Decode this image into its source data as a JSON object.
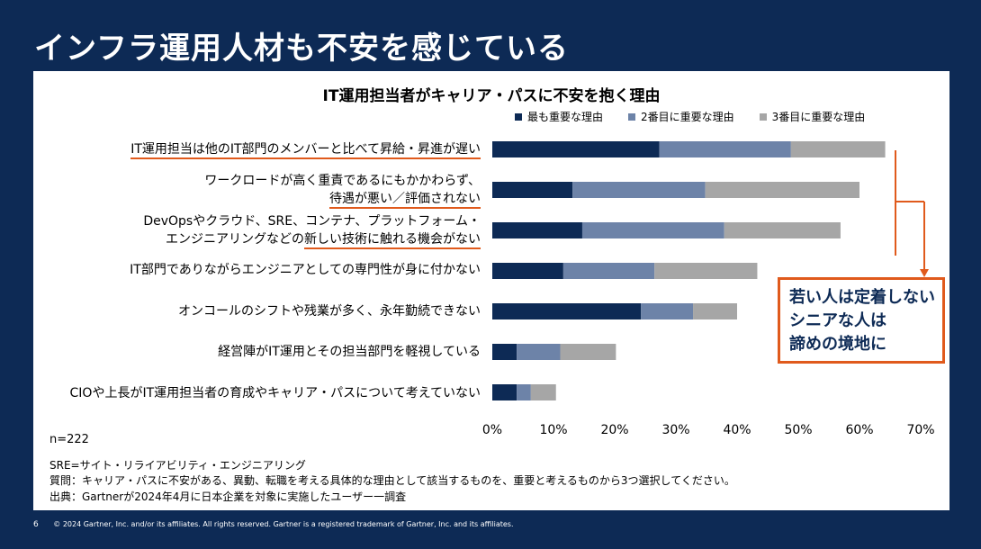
{
  "slide": {
    "title": "インフラ運用人材も不安を感じている",
    "page_number": "6",
    "copyright": "© 2024 Gartner, Inc. and/or its affiliates. All rights reserved. Gartner is a registered trademark of Gartner, Inc. and its affiliates."
  },
  "chart_data": {
    "type": "bar",
    "orientation": "horizontal",
    "stacked": true,
    "title": "IT運用担当者がキャリア・パスに不安を抱く理由",
    "categories": [
      "IT運用担当は他のIT部門のメンバーと比べて昇給・昇進が遅い",
      "ワークロードが高く重責であるにもかかわらず、待遇が悪い／評価されない",
      "DevOpsやクラウド、SRE、コンテナ、プラットフォーム・エンジニアリングなどの新しい技術に触れる機会がない",
      "IT部門でありながらエンジニアとしての専門性が身に付かない",
      "オンコールのシフトや残業が多く、永年勤続できない",
      "経営陣がIT運用とその担当部門を軽視している",
      "CIOや上長がIT運用担当者の育成やキャリア・パスについて考えていない"
    ],
    "series": [
      {
        "name": "最も重要な理由",
        "color": "#0d2a55",
        "values": [
          27.3,
          13.1,
          14.7,
          11.6,
          24.3,
          4.0,
          4.0
        ]
      },
      {
        "name": "2番目に重要な理由",
        "color": "#6d83a8",
        "values": [
          21.5,
          21.7,
          23.2,
          14.9,
          8.5,
          7.1,
          2.3
        ]
      },
      {
        "name": "3番目に重要な理由",
        "color": "#a6a6a6",
        "values": [
          15.4,
          25.2,
          19.0,
          16.8,
          7.2,
          9.1,
          4.1
        ]
      }
    ],
    "xlim": [
      0,
      70
    ],
    "xticks": [
      "0%",
      "10%",
      "20%",
      "30%",
      "40%",
      "50%",
      "60%",
      "70%"
    ],
    "legend_position": "top-right",
    "grid": false
  },
  "labels": {
    "row0": {
      "pre": "IT運用担当は他のIT部門のメンバーと比べて昇給・昇進が遅い"
    },
    "row1": {
      "line1": "ワークロードが高く重責であるにもかかわらず、",
      "pre": "",
      "ul": "待遇が悪い／評価されない"
    },
    "row2": {
      "line1": "DevOpsやクラウド、SRE、コンテナ、プラットフォーム・",
      "pre": "エンジニアリングなどの",
      "ul": "新しい技術に触れる機会がない"
    },
    "row3": {
      "text": "IT部門でありながらエンジニアとしての専門性が身に付かない"
    },
    "row4": {
      "text": "オンコールのシフトや残業が多く、永年勤続できない"
    },
    "row5": {
      "text": "経営陣がIT運用とその担当部門を軽視している"
    },
    "row6": {
      "text": "CIOや上長がIT運用担当者の育成やキャリア・パスについて考えていない"
    }
  },
  "callout": {
    "line1": "若い人は定着しない",
    "line2": "シニアな人は",
    "line3": "諦めの境地に"
  },
  "notes": {
    "n": "n=222",
    "sre": "SRE=サイト・リライアビリティ・エンジニアリング",
    "question": "質問：キャリア・パスに不安がある、異動、転職を考える具体的な理由として該当するものを、重要と考えるものから3つ選択してください。",
    "source": "出典：Gartnerが2024年4月に日本企業を対象に実施したユーザー一調査"
  },
  "colors": {
    "background": "#0d2a55",
    "accent": "#e05a1c"
  }
}
